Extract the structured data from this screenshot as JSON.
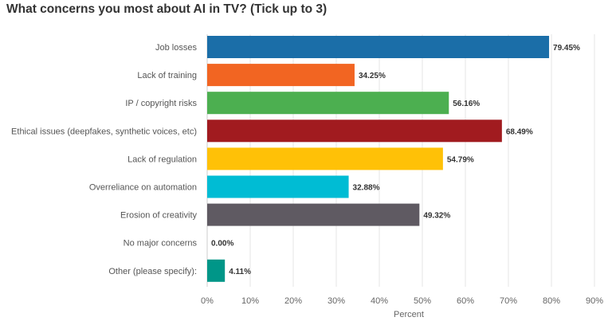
{
  "chart_data": {
    "type": "bar",
    "orientation": "horizontal",
    "title": "What concerns you most about AI in TV? (Tick up to 3)",
    "xlabel": "Percent",
    "ylabel": "",
    "xlim": [
      0,
      90
    ],
    "grid": true,
    "categories": [
      "Job losses",
      "Lack of training",
      "IP / copyright risks",
      "Ethical issues (deepfakes, synthetic voices, etc)",
      "Lack of regulation",
      "Overreliance on automation",
      "Erosion of creativity",
      "No major concerns",
      "Other (please specify):"
    ],
    "values": [
      79.45,
      34.25,
      56.16,
      68.49,
      54.79,
      32.88,
      49.32,
      0.0,
      4.11
    ],
    "value_labels": [
      "79.45%",
      "34.25%",
      "56.16%",
      "68.49%",
      "54.79%",
      "32.88%",
      "49.32%",
      "0.00%",
      "4.11%"
    ],
    "colors": [
      "#1b6ea8",
      "#f26522",
      "#4caf50",
      "#a11b1f",
      "#ffc107",
      "#00bcd4",
      "#5f5a62",
      "#888888",
      "#009688"
    ],
    "ticks": [
      0,
      10,
      20,
      30,
      40,
      50,
      60,
      70,
      80,
      90
    ],
    "tick_labels": [
      "0%",
      "10%",
      "20%",
      "30%",
      "40%",
      "50%",
      "60%",
      "70%",
      "80%",
      "90%"
    ]
  }
}
